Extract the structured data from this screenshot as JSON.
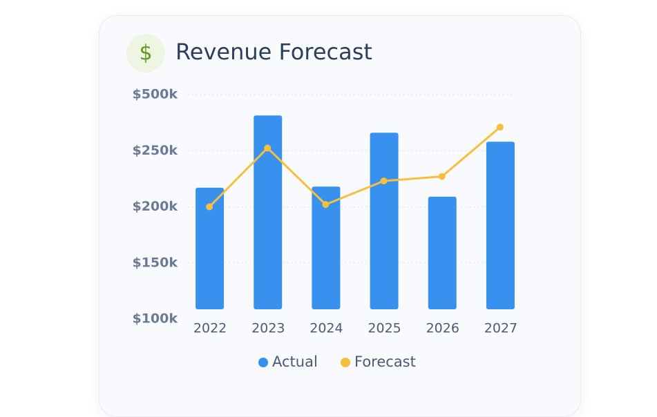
{
  "icon": "$",
  "chart_data": {
    "type": "bar+line",
    "title": "Revenue Forecast",
    "categories": [
      "2022",
      "2023",
      "2024",
      "2025",
      "2026",
      "2027"
    ],
    "series": [
      {
        "name": "Actual",
        "type": "bar",
        "color": "#3891ee",
        "values": [
          217000,
          407000,
          218000,
          330000,
          209000,
          290000
        ]
      },
      {
        "name": "Forecast",
        "type": "line",
        "color": "#f8bf3e",
        "values": [
          200000,
          262000,
          202000,
          223000,
          227000,
          355000
        ]
      }
    ],
    "ylim": [
      100000,
      500000
    ],
    "yticks": [
      {
        "value": 100000,
        "label": "$100k"
      },
      {
        "value": 150000,
        "label": "$150k"
      },
      {
        "value": 200000,
        "label": "$200k"
      },
      {
        "value": 250000,
        "label": "$250k"
      },
      {
        "value": 500000,
        "label": "$500k"
      }
    ],
    "grid": true,
    "legend": "bottom"
  }
}
